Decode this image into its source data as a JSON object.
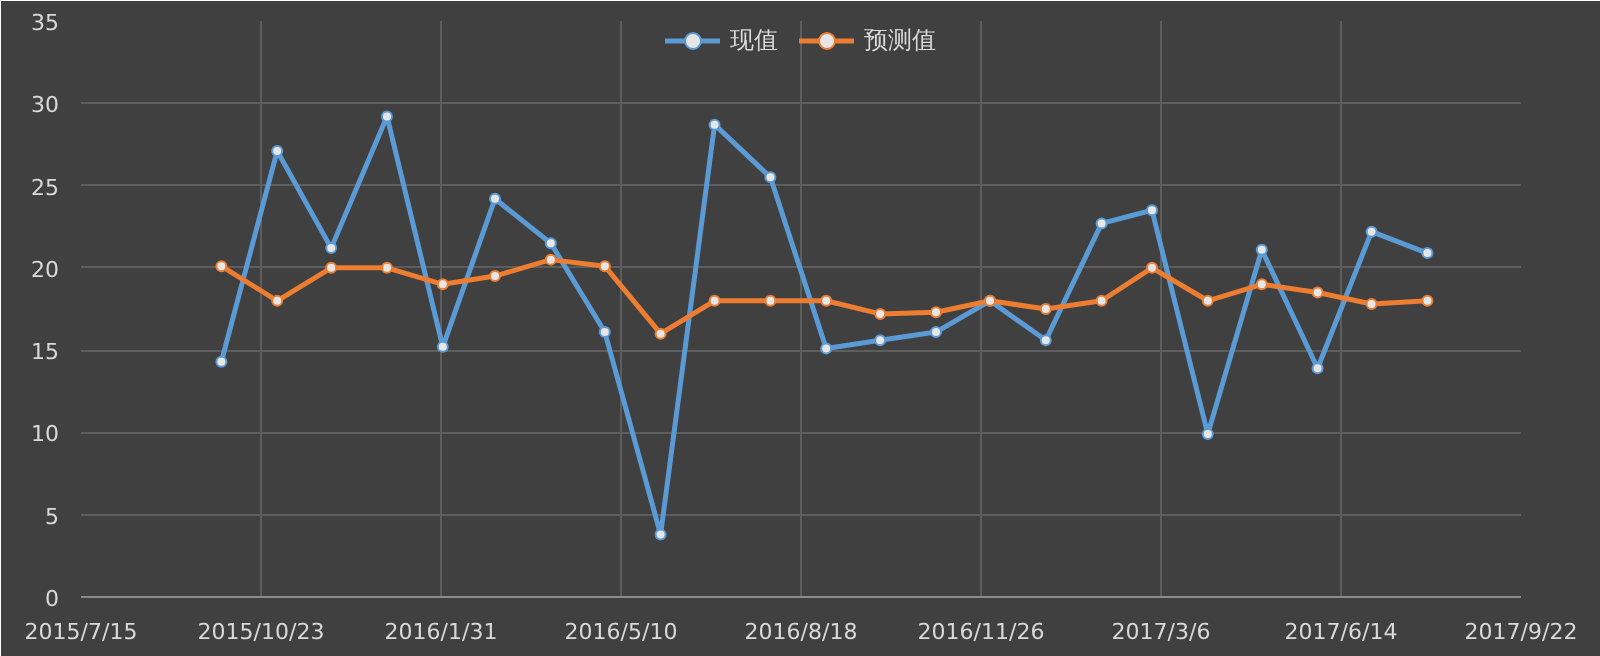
{
  "chart_data": {
    "type": "line",
    "x": [
      "2015-10-01",
      "2015-11-01",
      "2015-12-01",
      "2016-01-01",
      "2016-02-01",
      "2016-03-01",
      "2016-04-01",
      "2016-05-01",
      "2016-06-01",
      "2016-07-01",
      "2016-08-01",
      "2016-09-01",
      "2016-10-01",
      "2016-11-01",
      "2016-12-01",
      "2017-01-01",
      "2017-02-01",
      "2017-03-01",
      "2017-04-01",
      "2017-05-01",
      "2017-06-01",
      "2017-07-01",
      "2017-08-01"
    ],
    "series": [
      {
        "name": "现值",
        "color": "#5b9bd5",
        "values": [
          14.3,
          27.1,
          21.2,
          29.2,
          15.2,
          24.2,
          21.5,
          16.1,
          3.8,
          28.7,
          25.5,
          15.1,
          15.6,
          16.1,
          18.0,
          15.6,
          22.7,
          23.5,
          9.9,
          21.1,
          13.9,
          22.2,
          20.9
        ]
      },
      {
        "name": "预测值",
        "color": "#ed7d31",
        "values": [
          20.1,
          18.0,
          20.0,
          20.0,
          19.0,
          19.5,
          20.5,
          20.1,
          16.0,
          18.0,
          18.0,
          18.0,
          17.2,
          17.3,
          18.0,
          17.5,
          18.0,
          20.0,
          18.0,
          19.0,
          18.5,
          17.8,
          18.0
        ]
      }
    ],
    "xlim": [
      "2015-07-15",
      "2017-09-22"
    ],
    "xticks": [
      {
        "value": "2015-07-15",
        "label": "2015/7/15"
      },
      {
        "value": "2015-10-23",
        "label": "2015/10/23"
      },
      {
        "value": "2016-01-31",
        "label": "2016/1/31"
      },
      {
        "value": "2016-05-10",
        "label": "2016/5/10"
      },
      {
        "value": "2016-08-18",
        "label": "2016/8/18"
      },
      {
        "value": "2016-11-26",
        "label": "2016/11/26"
      },
      {
        "value": "2017-03-06",
        "label": "2017/3/6"
      },
      {
        "value": "2017-06-14",
        "label": "2017/6/14"
      },
      {
        "value": "2017-09-22",
        "label": "2017/9/22"
      }
    ],
    "ylim": [
      0,
      35
    ],
    "yticks": [
      0,
      5,
      10,
      15,
      20,
      25,
      30,
      35
    ],
    "grid": true,
    "legend": "top",
    "marker": "circle",
    "line_style": "solid"
  }
}
